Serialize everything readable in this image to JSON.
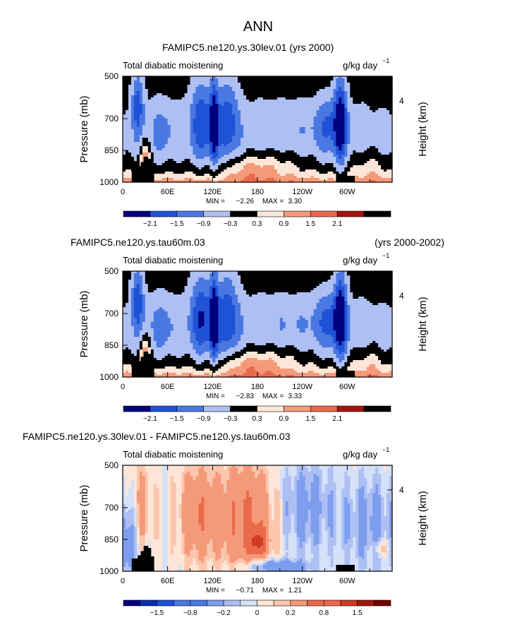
{
  "figure_title": "ANN",
  "colors": {
    "cb_diverging": [
      "#00007f",
      "#0c2bb2",
      "#1f52d6",
      "#4a78e3",
      "#7d9ded",
      "#aebff3",
      "#d4e1f8",
      "#fde6d8",
      "#fbc6ad",
      "#f59a79",
      "#e96a4a",
      "#d23a25",
      "#a51410",
      "#6f0000"
    ],
    "terrain": "#000000"
  },
  "chart_data": [
    {
      "type": "heatmap",
      "title_left": "FAMIPC5.ne120.ys.30lev.01 (yrs 2000)",
      "title_right": "",
      "subtitle_left": "Total diabatic moistening",
      "units": "g/kg day",
      "units_exp": "−1",
      "ylabel": "Pressure (mb)",
      "ylabel_right": "Height (km)",
      "yticks": [
        "500",
        "700",
        "850",
        "1000"
      ],
      "yticks_right": [
        "4"
      ],
      "xticks": [
        "0",
        "60E",
        "120E",
        "180",
        "120W",
        "60W"
      ],
      "xlim": [
        0,
        360
      ],
      "ylim": [
        1000,
        500
      ],
      "min_label": "MIN =",
      "min_value": "−2.26",
      "max_label": "MAX =",
      "max_value": "3.30",
      "colorbar_labels": [
        "−2.1",
        "−1.5",
        "−0.9",
        "−0.3",
        "0.3",
        "0.9",
        "1.5",
        "2.1"
      ],
      "colorbar_levels": [
        -2.1,
        -1.5,
        -0.9,
        -0.3,
        0.3,
        0.9,
        1.5,
        2.1
      ],
      "field_scale": 1.0
    },
    {
      "type": "heatmap",
      "title_left": "FAMIPC5.ne120.ys.tau60m.03",
      "title_right": "(yrs 2000-2002)",
      "subtitle_left": "Total diabatic moistening",
      "units": "g/kg day",
      "units_exp": "−1",
      "ylabel": "Pressure (mb)",
      "ylabel_right": "Height (km)",
      "yticks": [
        "500",
        "700",
        "850",
        "1000"
      ],
      "yticks_right": [
        "4"
      ],
      "xticks": [
        "0",
        "60E",
        "120E",
        "180",
        "120W",
        "60W"
      ],
      "xlim": [
        0,
        360
      ],
      "ylim": [
        1000,
        500
      ],
      "min_label": "MIN =",
      "min_value": "−2.83",
      "max_label": "MAX =",
      "max_value": "3.33",
      "colorbar_labels": [
        "−2.1",
        "−1.5",
        "−0.9",
        "−0.3",
        "0.3",
        "0.9",
        "1.5",
        "2.1"
      ],
      "colorbar_levels": [
        -2.1,
        -1.5,
        -0.9,
        -0.3,
        0.3,
        0.9,
        1.5,
        2.1
      ],
      "field_scale": 1.05
    },
    {
      "type": "heatmap",
      "title_left": "FAMIPC5.ne120.ys.30lev.01 - FAMIPC5.ne120.ys.tau60m.03",
      "title_right": "",
      "subtitle_left": "Total diabatic moistening",
      "units": "g/kg day",
      "units_exp": "−1",
      "ylabel": "Pressure (mb)",
      "ylabel_right": "Height (km)",
      "yticks": [
        "500",
        "700",
        "850",
        "1000"
      ],
      "yticks_right": [
        "4"
      ],
      "xticks": [
        "0",
        "60E",
        "120E",
        "180",
        "120W",
        "60W"
      ],
      "xlim": [
        0,
        360
      ],
      "ylim": [
        1000,
        500
      ],
      "min_label": "MIN =",
      "min_value": "−0.71",
      "max_label": "MAX =",
      "max_value": "1.21",
      "colorbar_labels": [
        "−1.5",
        "−0.8",
        "−0.2",
        "0",
        "0.2",
        "0.8",
        "1.5"
      ],
      "colorbar_levels": [
        -2.0,
        -1.5,
        -1.0,
        -0.8,
        -0.5,
        -0.2,
        -0.1,
        0,
        0.1,
        0.2,
        0.5,
        0.8,
        1.0,
        1.5,
        2.0
      ],
      "field_scale": 1.0
    }
  ]
}
